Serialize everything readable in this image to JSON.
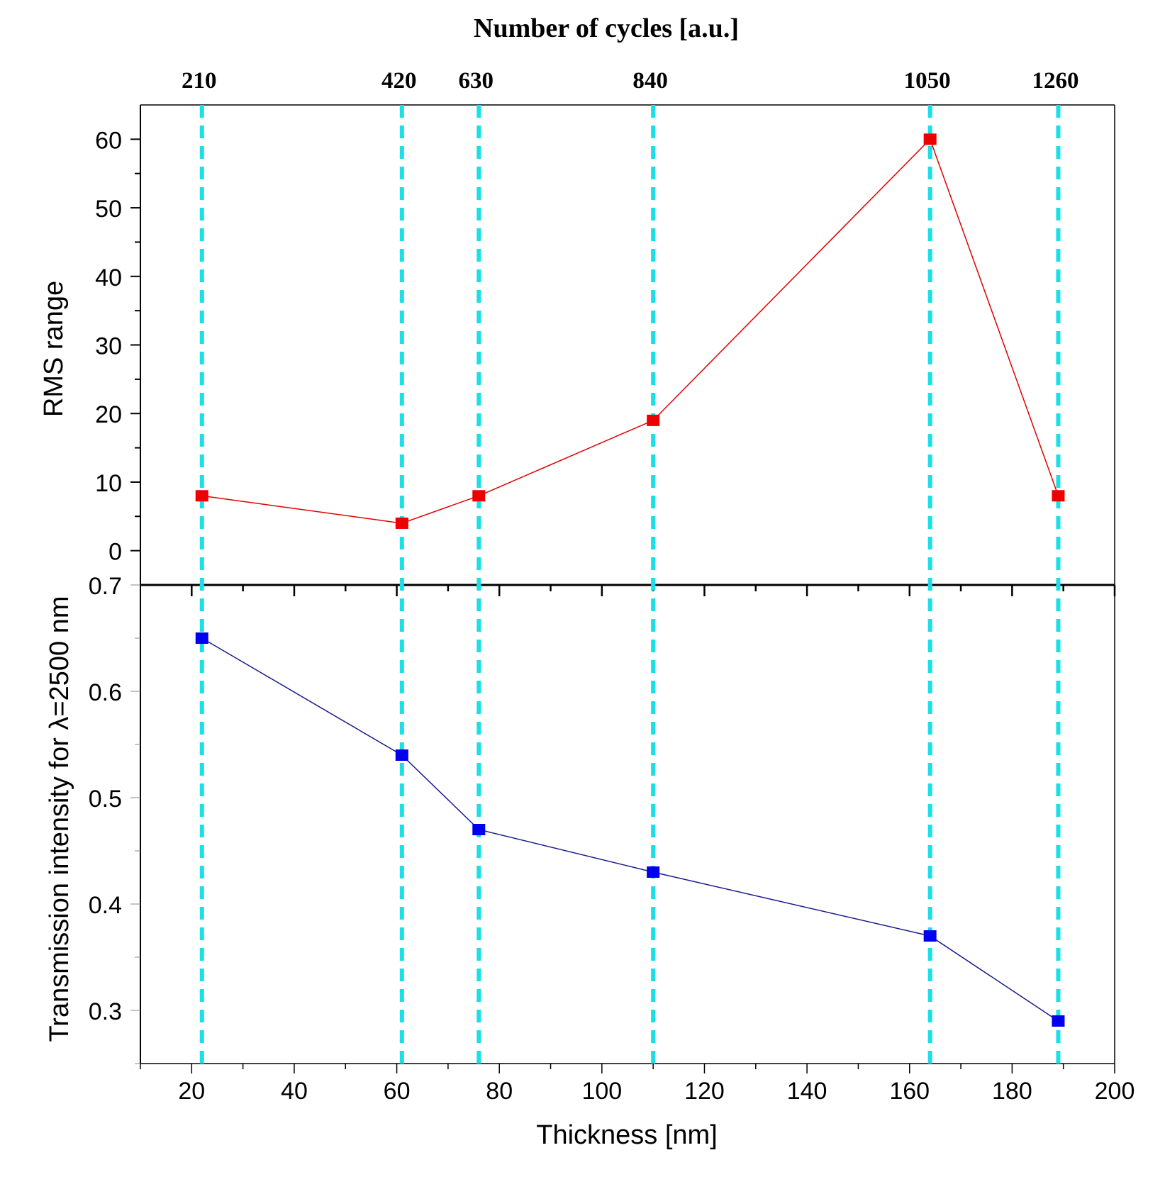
{
  "chart_data": [
    {
      "type": "line",
      "panel": "top",
      "title": "Number of cycles [a.u.]",
      "top_axis_label": "Number of cycles [a.u.]",
      "top_tick_labels": [
        "210",
        "420",
        "630",
        "840",
        "1050",
        "1260"
      ],
      "xlabel": "",
      "ylabel": "RMS range",
      "xlim": [
        10,
        200
      ],
      "ylim": [
        -5,
        65
      ],
      "y_ticks": [
        0,
        10,
        20,
        30,
        40,
        50,
        60
      ],
      "y_tick_labels": [
        "0",
        "10",
        "20",
        "30",
        "40",
        "50",
        "60"
      ],
      "series": [
        {
          "name": "RMS range",
          "color": "#e00000",
          "x": [
            22,
            61,
            76,
            110,
            164,
            189
          ],
          "y": [
            8,
            4,
            8,
            19,
            60,
            8
          ]
        }
      ]
    },
    {
      "type": "line",
      "panel": "bottom",
      "xlabel": "Thickness [nm]",
      "ylabel": "Transmission intensity for λ=2500 nm",
      "xlim": [
        10,
        200
      ],
      "ylim": [
        0.25,
        0.7
      ],
      "x_ticks": [
        20,
        40,
        60,
        80,
        100,
        120,
        140,
        160,
        180,
        200
      ],
      "x_tick_labels": [
        "20",
        "40",
        "60",
        "80",
        "100",
        "120",
        "140",
        "160",
        "180",
        "200"
      ],
      "y_ticks": [
        0.3,
        0.4,
        0.5,
        0.6,
        0.7
      ],
      "y_tick_labels": [
        "0.3",
        "0.4",
        "0.5",
        "0.6",
        "0.7"
      ],
      "series": [
        {
          "name": "Transmission intensity",
          "color": "#0000dd",
          "x": [
            22,
            61,
            76,
            110,
            164,
            189
          ],
          "y": [
            0.65,
            0.54,
            0.47,
            0.43,
            0.37,
            0.29
          ]
        }
      ]
    }
  ],
  "reference_lines": {
    "x": [
      22,
      61,
      76,
      110,
      164,
      189
    ],
    "color": "#19e0e6"
  },
  "colors": {
    "rms_line": "#e00000",
    "rms_marker": "#ee0000",
    "transmission_line": "#1a1a8c",
    "transmission_marker": "#0000ee",
    "axis": "#000000"
  }
}
